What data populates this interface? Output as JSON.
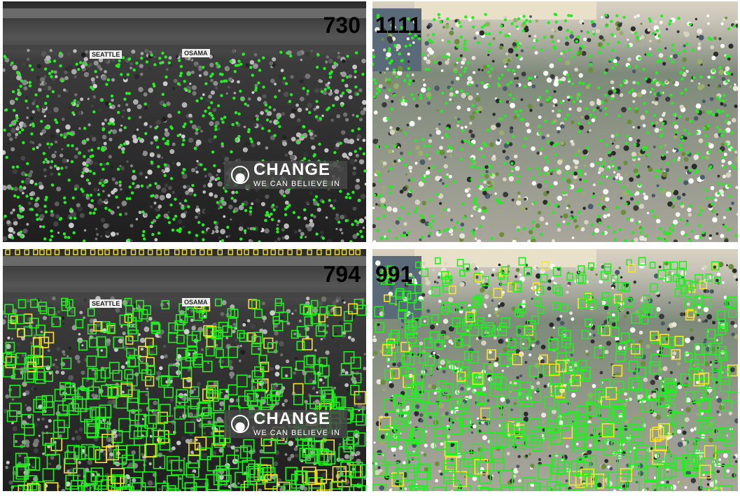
{
  "panels": [
    {
      "id": "tl",
      "count_label": "730",
      "banner": {
        "main": "CHANGE",
        "sub": "WE CAN BELIEVE IN"
      },
      "signs": [
        "SEATTLE",
        "OSAMA"
      ],
      "style": "grayscale-dots"
    },
    {
      "id": "tr",
      "count_label": "1111",
      "style": "color-dots"
    },
    {
      "id": "bl",
      "count_label": "794",
      "banner": {
        "main": "CHANGE",
        "sub": "WE CAN BELIEVE IN"
      },
      "signs": [
        "SEATTLE",
        "OSAMA"
      ],
      "style": "grayscale-boxes"
    },
    {
      "id": "br",
      "count_label": "991",
      "style": "color-boxes"
    }
  ],
  "colors": {
    "detection_green": "#22ee22",
    "detection_yellow": "#f5e62a",
    "count_text": "#000000"
  }
}
